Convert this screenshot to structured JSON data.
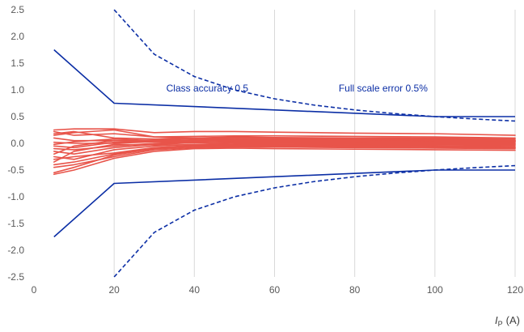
{
  "chart_data": {
    "type": "line",
    "title": "",
    "xlabel": {
      "symbol": "I",
      "subscript": "P",
      "unit": "(A)"
    },
    "ylabel": "",
    "xlim": [
      0,
      120
    ],
    "ylim": [
      -2.5,
      2.5
    ],
    "x_ticks": [
      0,
      20,
      40,
      60,
      80,
      100,
      120
    ],
    "x_tick_labels": [
      "0",
      "20",
      "40",
      "60",
      "80",
      "100",
      "120"
    ],
    "y_ticks": [
      2.5,
      2.0,
      1.5,
      1.0,
      0.5,
      0.0,
      -0.5,
      -1.0,
      -1.5,
      -2.0,
      -2.5
    ],
    "y_tick_labels": [
      "2.5",
      "2.0",
      "1.5",
      "1.0",
      "0.5",
      "0.0",
      "-0.5",
      "-1.0",
      "-1.5",
      "-2.0",
      "-2.5"
    ],
    "grid": {
      "vertical": true,
      "horizontal": false
    },
    "legend": "none",
    "colors": {
      "limit_line": "#0b2ea5",
      "measurement": "#e8544a",
      "grid": "#d9d9d9",
      "tick_text": "#595959"
    },
    "annotations": [
      {
        "text": "Class accuracy 0.5",
        "x": 33,
        "y": 0.97,
        "color": "#0b2ea5"
      },
      {
        "text": "Full scale error 0.5%",
        "x": 76,
        "y": 0.97,
        "color": "#0b2ea5"
      }
    ],
    "limit_series": [
      {
        "style": "solid",
        "x": [
          5,
          20,
          100,
          120
        ],
        "y": [
          1.75,
          0.75,
          0.5,
          0.5
        ]
      },
      {
        "style": "solid",
        "x": [
          5,
          20,
          100,
          120
        ],
        "y": [
          -1.75,
          -0.75,
          -0.5,
          -0.5
        ]
      },
      {
        "style": "dashed",
        "x": [
          20,
          30,
          40,
          50,
          60,
          70,
          80,
          90,
          100,
          110,
          120
        ],
        "y": [
          2.5,
          1.667,
          1.25,
          1.0,
          0.833,
          0.714,
          0.625,
          0.556,
          0.5,
          0.455,
          0.417
        ]
      },
      {
        "style": "dashed",
        "x": [
          20,
          30,
          40,
          50,
          60,
          70,
          80,
          90,
          100,
          110,
          120
        ],
        "y": [
          -2.5,
          -1.667,
          -1.25,
          -1.0,
          -0.833,
          -0.714,
          -0.625,
          -0.556,
          -0.5,
          -0.455,
          -0.417
        ]
      }
    ],
    "x_measure": [
      5,
      10,
      20,
      30,
      40,
      50,
      60,
      80,
      100,
      120
    ],
    "measurement_series": [
      [
        0.25,
        0.27,
        0.27,
        0.2,
        0.22,
        0.22,
        0.21,
        0.19,
        0.18,
        0.15
      ],
      [
        0.22,
        0.15,
        0.18,
        0.12,
        0.13,
        0.14,
        0.14,
        0.13,
        0.12,
        0.1
      ],
      [
        0.18,
        0.22,
        0.1,
        0.08,
        0.1,
        0.12,
        0.11,
        0.1,
        0.1,
        0.08
      ],
      [
        0.1,
        0.05,
        0.05,
        0.06,
        0.08,
        0.09,
        0.09,
        0.08,
        0.08,
        0.06
      ],
      [
        0.02,
        0.0,
        0.0,
        0.03,
        0.06,
        0.07,
        0.07,
        0.06,
        0.06,
        0.05
      ],
      [
        -0.02,
        0.03,
        0.08,
        0.05,
        0.05,
        0.06,
        0.05,
        0.05,
        0.04,
        0.04
      ],
      [
        -0.05,
        -0.08,
        0.02,
        0.04,
        0.04,
        0.05,
        0.05,
        0.04,
        0.03,
        0.03
      ],
      [
        -0.1,
        -0.12,
        -0.05,
        0.0,
        0.02,
        0.03,
        0.03,
        0.03,
        0.02,
        0.02
      ],
      [
        -0.15,
        -0.2,
        -0.08,
        -0.02,
        0.01,
        0.02,
        0.02,
        0.01,
        0.01,
        0.0
      ],
      [
        -0.2,
        -0.05,
        0.05,
        0.03,
        0.02,
        0.01,
        0.0,
        0.0,
        -0.01,
        -0.01
      ],
      [
        -0.25,
        -0.3,
        -0.12,
        -0.05,
        -0.02,
        0.0,
        0.0,
        -0.01,
        -0.02,
        -0.02
      ],
      [
        -0.3,
        -0.25,
        -0.18,
        -0.08,
        -0.04,
        -0.02,
        -0.02,
        -0.03,
        -0.03,
        -0.04
      ],
      [
        -0.35,
        -0.15,
        -0.02,
        -0.03,
        -0.03,
        -0.03,
        -0.04,
        -0.04,
        -0.05,
        -0.06
      ],
      [
        -0.4,
        -0.35,
        -0.2,
        -0.1,
        -0.06,
        -0.05,
        -0.05,
        -0.06,
        -0.07,
        -0.08
      ],
      [
        -0.45,
        -0.4,
        -0.25,
        -0.12,
        -0.08,
        -0.07,
        -0.07,
        -0.08,
        -0.09,
        -0.1
      ],
      [
        -0.55,
        -0.45,
        -0.22,
        -0.1,
        -0.05,
        -0.04,
        -0.05,
        -0.06,
        -0.07,
        -0.08
      ],
      [
        -0.58,
        -0.5,
        -0.28,
        -0.15,
        -0.1,
        -0.09,
        -0.1,
        -0.11,
        -0.12,
        -0.13
      ],
      [
        0.15,
        0.2,
        0.25,
        0.12,
        0.1,
        0.1,
        0.09,
        0.08,
        0.07,
        0.05
      ]
    ]
  }
}
